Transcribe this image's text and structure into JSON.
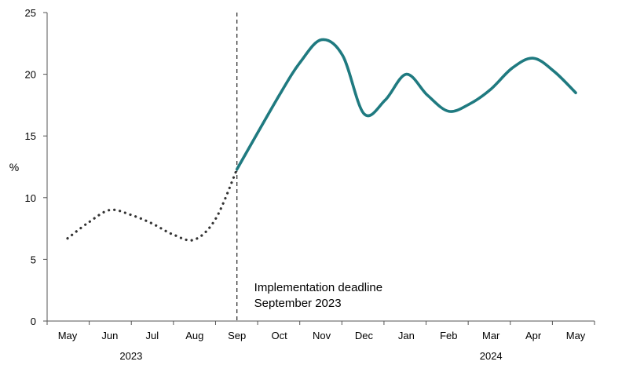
{
  "chart_data": {
    "type": "line",
    "ylabel": "%",
    "ylim": [
      0,
      25
    ],
    "yticks": [
      0,
      5,
      10,
      15,
      20,
      25
    ],
    "categories": [
      "May",
      "Jun",
      "Jul",
      "Aug",
      "Sep",
      "Oct",
      "Nov",
      "Dec",
      "Jan",
      "Feb",
      "Mar",
      "Apr",
      "May"
    ],
    "year_labels": [
      {
        "label": "2023",
        "from": 0,
        "to": 3
      },
      {
        "label": "2024",
        "from": 8,
        "to": 12
      }
    ],
    "series": [
      {
        "style": "dotted",
        "color": "#333333",
        "x": [
          0,
          0.5,
          1,
          1.5,
          2,
          2.5,
          3,
          3.5,
          4
        ],
        "y": [
          6.7,
          8.0,
          9.0,
          8.6,
          7.9,
          7.0,
          6.6,
          8.3,
          12.3
        ]
      },
      {
        "style": "solid",
        "color": "#1f7a80",
        "x": [
          4,
          5,
          5.5,
          6,
          6.5,
          7,
          7.5,
          8,
          8.5,
          9,
          9.5,
          10,
          10.5,
          11,
          11.5,
          12
        ],
        "y": [
          12.3,
          18.3,
          21.0,
          22.8,
          21.5,
          16.8,
          17.9,
          20.0,
          18.3,
          17.0,
          17.6,
          18.8,
          20.5,
          21.3,
          20.2,
          18.5
        ]
      }
    ],
    "annotation": {
      "lines": [
        "Implementation deadline",
        "September 2023"
      ],
      "x": 4
    }
  }
}
